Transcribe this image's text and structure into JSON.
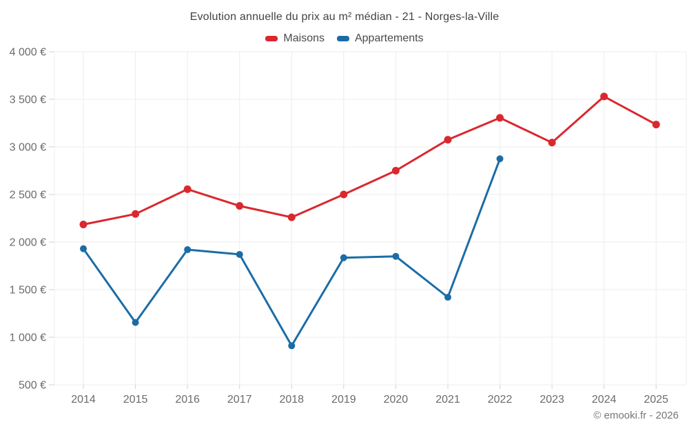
{
  "chart_data": {
    "type": "line",
    "title": "Evolution annuelle du prix au m² médian - 21 - Norges-la-Ville",
    "footer": "© emooki.fr - 2026",
    "categories": [
      "2014",
      "2015",
      "2016",
      "2017",
      "2018",
      "2019",
      "2020",
      "2021",
      "2022",
      "2023",
      "2024",
      "2025"
    ],
    "series": [
      {
        "name": "Maisons",
        "color": "#d9282e",
        "marker_radius": 5.5,
        "values": [
          2185,
          2295,
          2555,
          2380,
          2260,
          2500,
          2750,
          3075,
          3305,
          3045,
          3530,
          3235
        ]
      },
      {
        "name": "Appartements",
        "color": "#1b6ca6",
        "marker_radius": 5,
        "values": [
          1930,
          1155,
          1920,
          1870,
          910,
          1835,
          1850,
          1420,
          2875,
          null,
          null,
          null
        ]
      }
    ],
    "ylim": [
      500,
      4000
    ],
    "y_ticks": [
      {
        "value": 4000,
        "label": "4 000 €"
      },
      {
        "value": 3500,
        "label": "3 500 €"
      },
      {
        "value": 3000,
        "label": "3 000 €"
      },
      {
        "value": 2500,
        "label": "2 500 €"
      },
      {
        "value": 2000,
        "label": "2 000 €"
      },
      {
        "value": 1500,
        "label": "1 500 €"
      },
      {
        "value": 1000,
        "label": "1 000 €"
      },
      {
        "value": 500,
        "label": "500 €"
      }
    ],
    "grid": true,
    "legend_position": "top"
  },
  "colors": {
    "background": "#ffffff",
    "grid": "#ececec",
    "tick": "#d2d2d2",
    "axis_label": "#6b6b6b",
    "title": "#424242",
    "legend_label": "#4a4a4a",
    "footer": "#757575"
  }
}
